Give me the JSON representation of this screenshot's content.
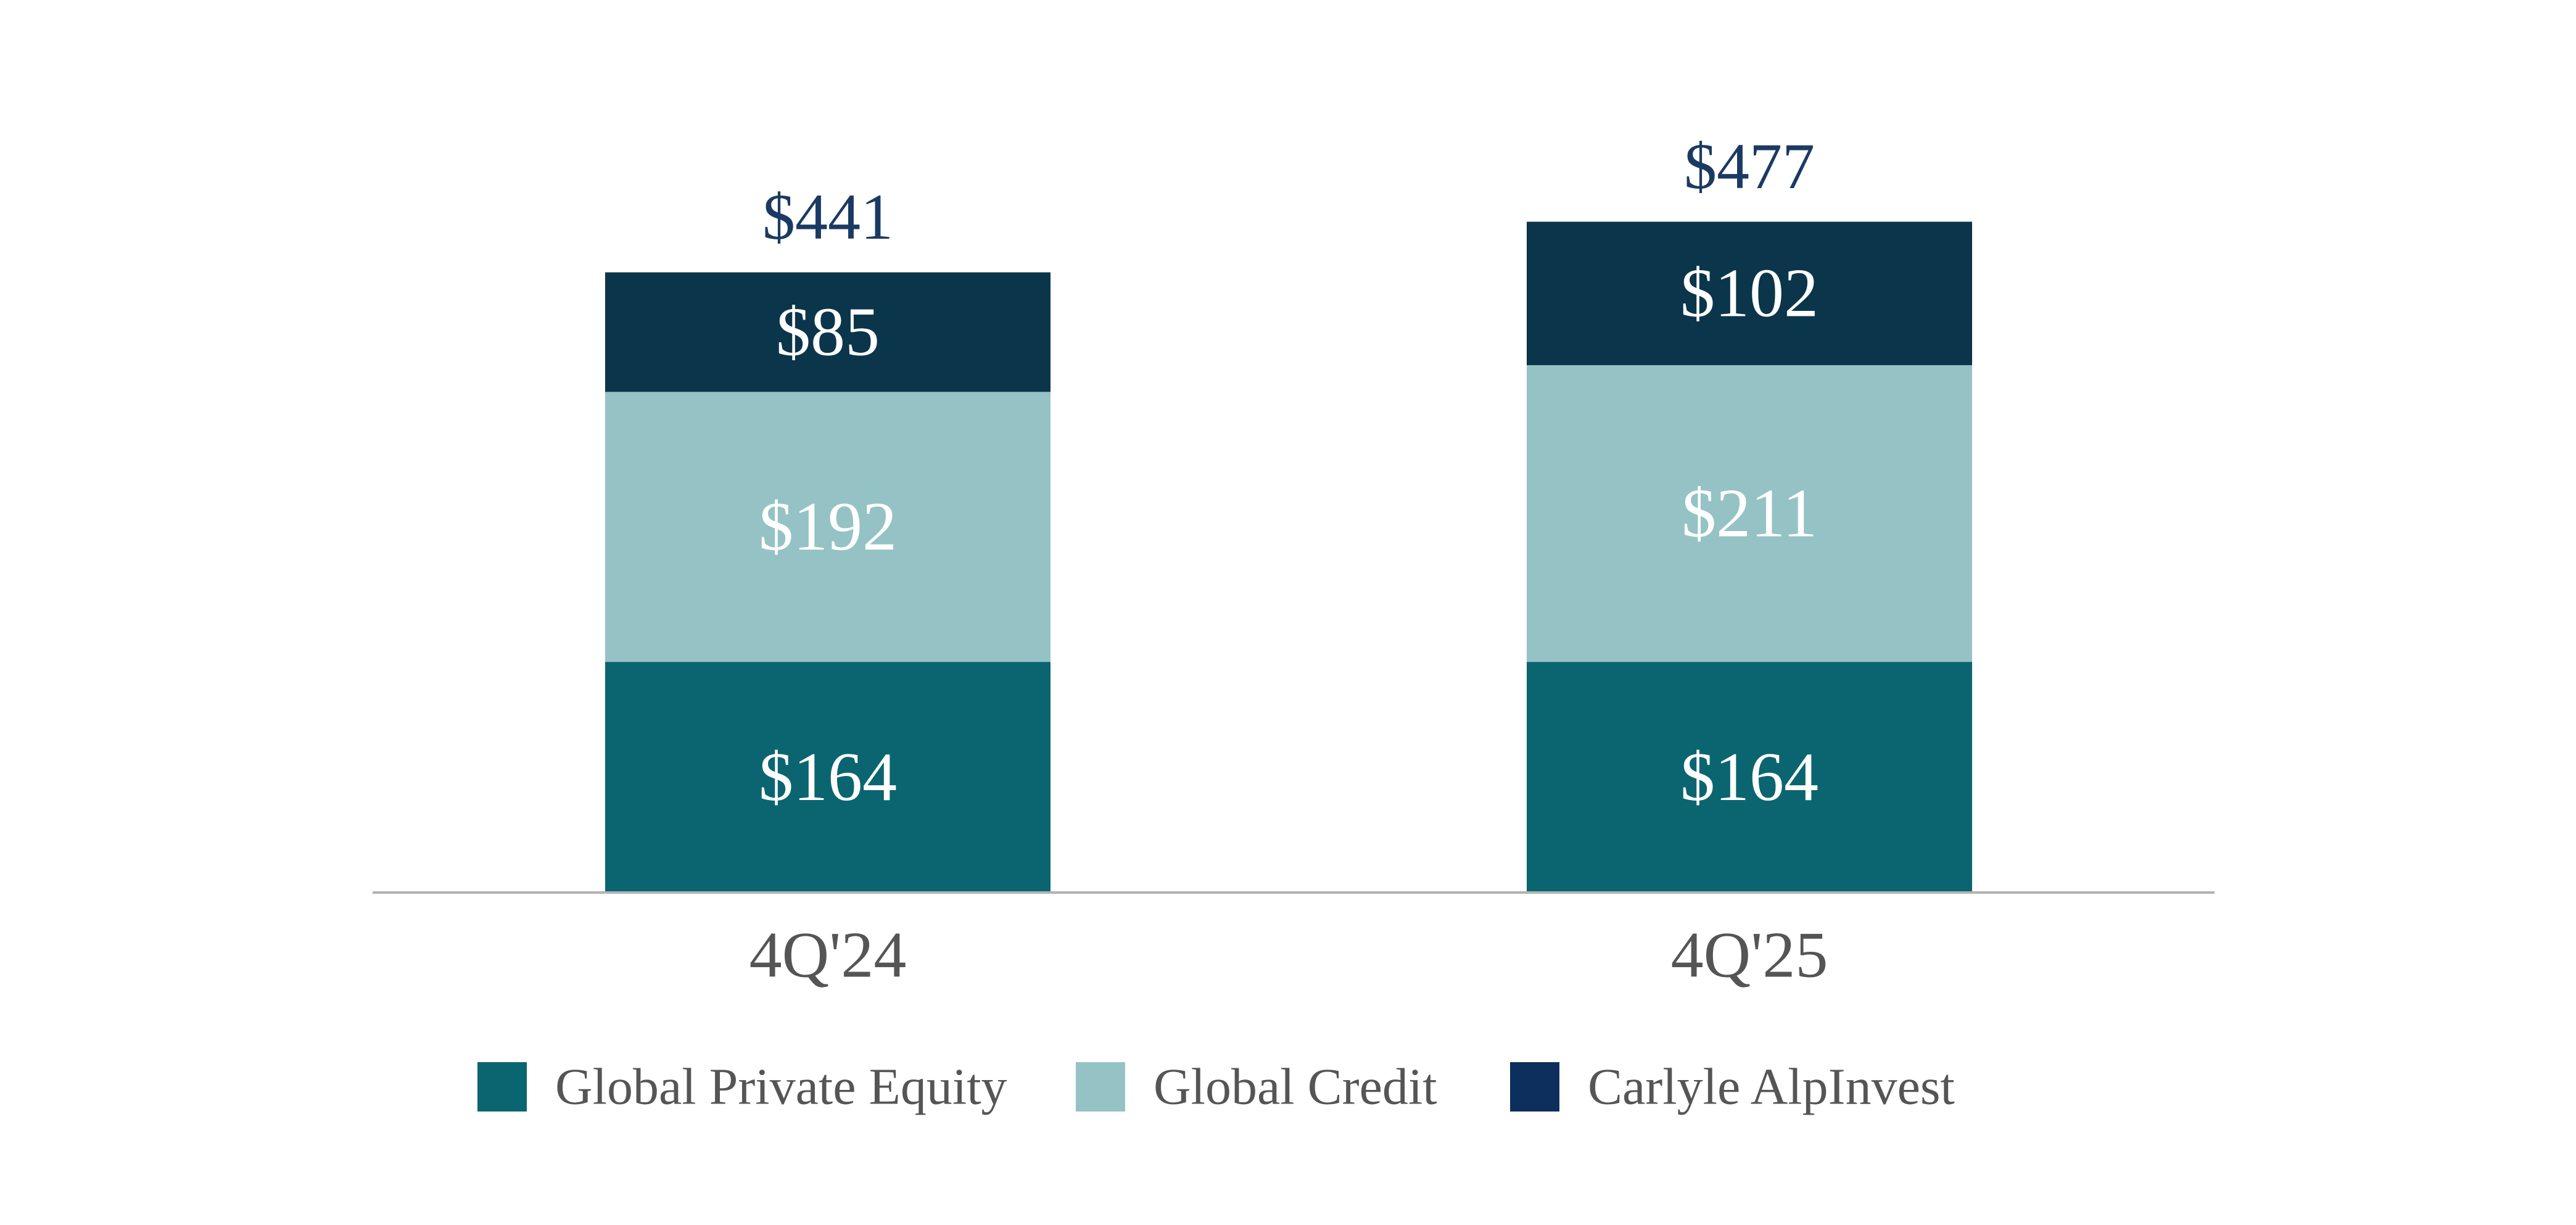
{
  "chart_data": {
    "type": "bar",
    "stacked": true,
    "title": "",
    "xlabel": "",
    "ylabel": "",
    "categories": [
      "4Q'24",
      "4Q'25"
    ],
    "series": [
      {
        "name": "Global Private Equity",
        "values": [
          164,
          164
        ],
        "labels": [
          "$164",
          "$164"
        ],
        "color": "#0b6570"
      },
      {
        "name": "Global Credit",
        "values": [
          192,
          211
        ],
        "labels": [
          "$192",
          "$211"
        ],
        "color": "#95c3c5"
      },
      {
        "name": "Carlyle AlpInvest",
        "values": [
          85,
          102
        ],
        "labels": [
          "$85",
          "$102"
        ],
        "color": "#0b354a"
      }
    ],
    "totals": [
      441,
      477
    ],
    "total_labels": [
      "$441",
      "$477"
    ],
    "total_label_color": "#1b3a63",
    "ylim": [
      0,
      500
    ],
    "grid": false,
    "legend": {
      "placement": "bottom",
      "entries": [
        {
          "name": "Global Private Equity",
          "color": "#0b6570"
        },
        {
          "name": "Global Credit",
          "color": "#95c3c5"
        },
        {
          "name": "Carlyle AlpInvest",
          "color": "#0c2f5e"
        }
      ]
    }
  }
}
